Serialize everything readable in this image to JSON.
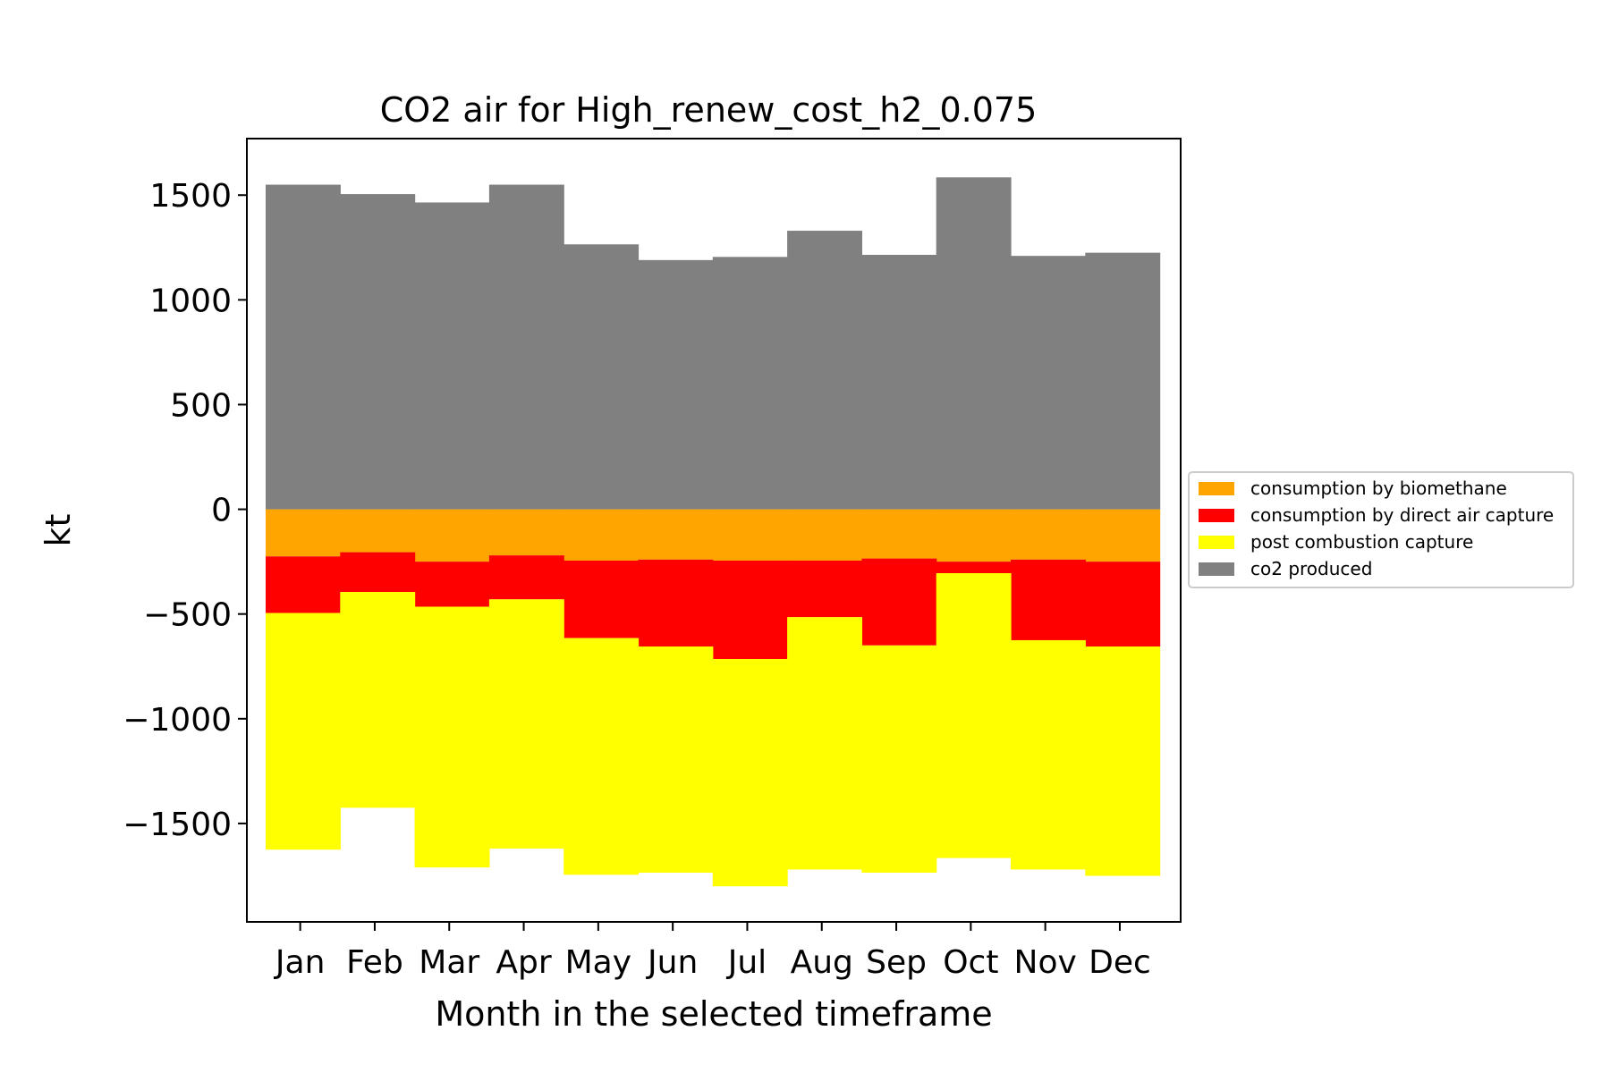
{
  "chart_data": {
    "type": "bar",
    "title": "CO2 air for High_renew_cost_h2_0.075",
    "xlabel": "Month in the selected timeframe",
    "ylabel": "kt",
    "categories": [
      "Jan",
      "Feb",
      "Mar",
      "Apr",
      "May",
      "Jun",
      "Jul",
      "Aug",
      "Sep",
      "Oct",
      "Nov",
      "Dec"
    ],
    "ylim": [
      -1970,
      1770
    ],
    "yticks": [
      1500,
      1000,
      500,
      0,
      -500,
      -1000,
      -1500
    ],
    "ytick_labels": [
      "1500",
      "1000",
      "500",
      "0",
      "−500",
      "−1000",
      "−1500"
    ],
    "stacked": true,
    "step_bars": true,
    "grid": false,
    "legend_position": "right",
    "series": [
      {
        "name": "consumption by biomethane",
        "color": "#ffa500",
        "values": [
          -225,
          -205,
          -250,
          -220,
          -245,
          -240,
          -245,
          -245,
          -235,
          -250,
          -240,
          -250
        ]
      },
      {
        "name": "consumption by direct air capture",
        "color": "#ff0000",
        "values": [
          -270,
          -190,
          -215,
          -210,
          -370,
          -415,
          -470,
          -270,
          -415,
          -55,
          -385,
          -405
        ]
      },
      {
        "name": "post combustion capture",
        "color": "#ffff00",
        "values": [
          -1130,
          -1030,
          -1245,
          -1190,
          -1130,
          -1080,
          -1085,
          -1205,
          -1085,
          -1360,
          -1095,
          -1095
        ]
      },
      {
        "name": "co2 produced",
        "color": "#808080",
        "values": [
          1550,
          1505,
          1465,
          1550,
          1265,
          1190,
          1205,
          1330,
          1215,
          1585,
          1210,
          1225
        ]
      }
    ]
  }
}
